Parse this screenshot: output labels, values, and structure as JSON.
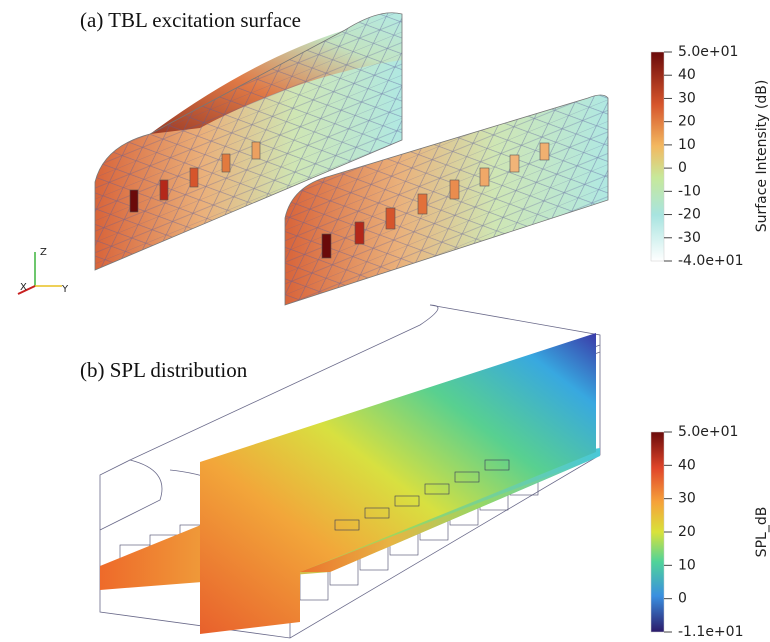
{
  "panels": [
    {
      "title": "(a) TBL excitation surface",
      "colorbar": {
        "label": "Surface Intensity (dB)",
        "ticks": [
          "5.0e+01",
          "40",
          "30",
          "20",
          "10",
          "0",
          "-10",
          "-20",
          "-30",
          "-4.0e+01"
        ]
      },
      "axes": [
        "Z",
        "X",
        "Y"
      ]
    },
    {
      "title": "(b) SPL distribution",
      "colorbar": {
        "label": "SPL_dB",
        "ticks": [
          "5.0e+01",
          "40",
          "30",
          "20",
          "10",
          "0",
          "-1.1e+01"
        ]
      }
    }
  ]
}
